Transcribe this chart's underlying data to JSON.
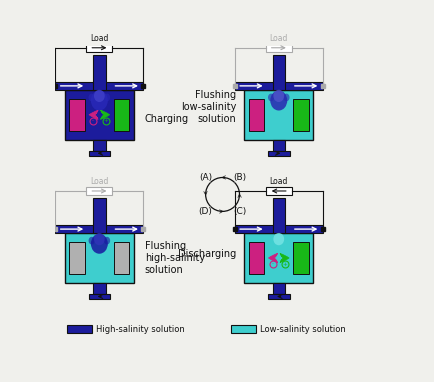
{
  "bg_color": "#f0f0ec",
  "dark_blue": "#1c1c9c",
  "pipe_blue": "#2020a0",
  "cyan": "#3ecece",
  "light_cyan": "#5ad4d4",
  "magenta": "#cc2080",
  "green": "#18b818",
  "gray": "#aaaaaa",
  "black": "#111111",
  "white": "#ffffff",
  "step_labels": {
    "TL": "Charging",
    "TR": "Flushing\nlow-salinity\nsolution",
    "BL": "Flushing\nhigh-salinity\nsolution",
    "BR": "Discharging"
  },
  "legend_left": "High-salinity solution",
  "legend_right": "Low-salinity solution",
  "fig_width": 4.35,
  "fig_height": 3.82
}
